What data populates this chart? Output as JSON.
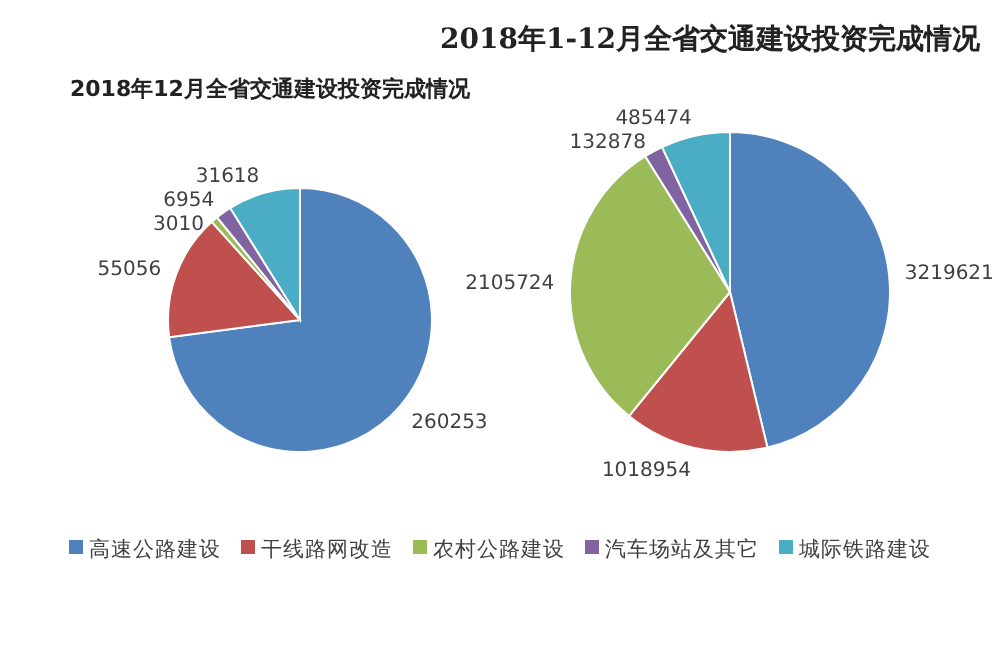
{
  "chart_data": [
    {
      "type": "pie",
      "title": "2018年12月全省交通建设投资完成情况",
      "categories": [
        null,
        null,
        null,
        null,
        null
      ],
      "values": [
        260253,
        55056,
        3010,
        6954,
        31618
      ],
      "colors": [
        "#4f81bd",
        "#c0504d",
        "#9bbb59",
        "#8064a2",
        "#4bacc6"
      ],
      "data_labels": true
    },
    {
      "type": "pie",
      "title": "2018年1-12月全省交通建设投资完成情况",
      "categories": [
        "高速公路建设",
        "干线路网改造",
        "农村公路建设",
        "汽车场站及其它",
        "城际铁路建设"
      ],
      "values": [
        3219621,
        1018954,
        2105724,
        132878,
        485474
      ],
      "colors": [
        "#4f81bd",
        "#c0504d",
        "#9bbb59",
        "#8064a2",
        "#4bacc6"
      ],
      "data_labels": true,
      "legend": "bottom"
    }
  ]
}
